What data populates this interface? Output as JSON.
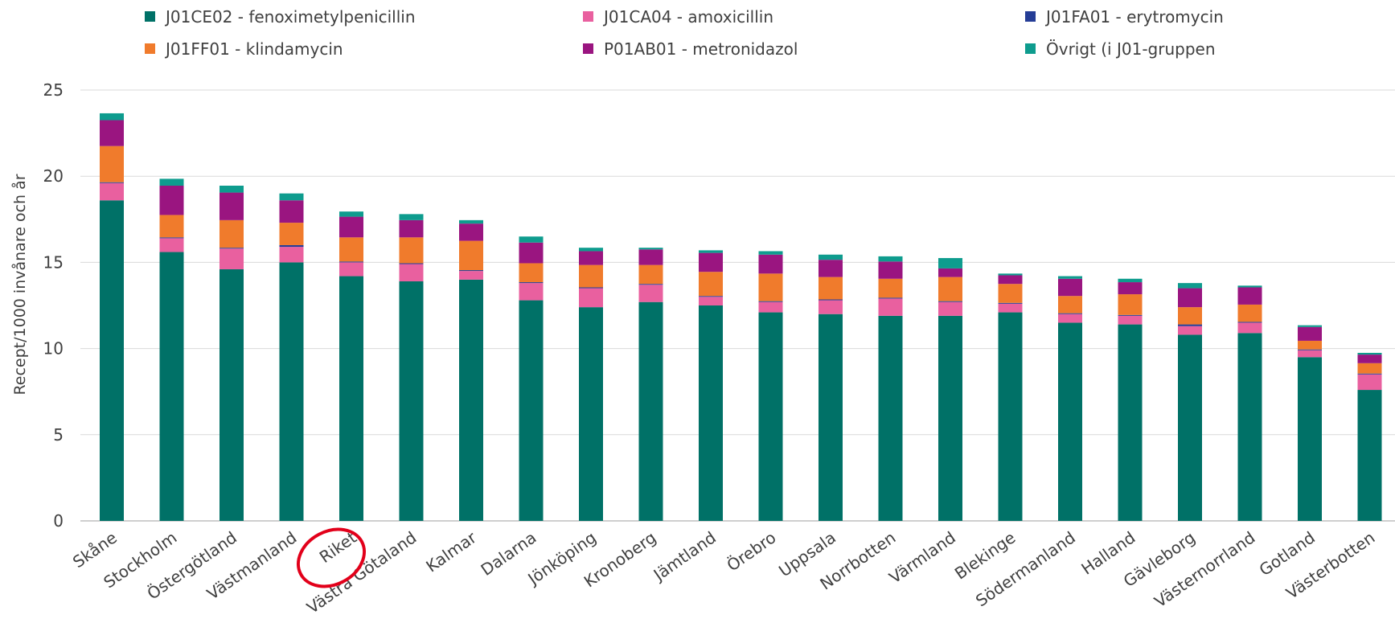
{
  "chart_data": {
    "type": "bar",
    "stacked": true,
    "title": "",
    "xlabel": "",
    "ylabel": "Recept/1000 invånare och år",
    "ylim": [
      0,
      25
    ],
    "yticks": [
      0,
      5,
      10,
      15,
      20,
      25
    ],
    "grid": true,
    "legend_position": "top",
    "highlighted_category": "Riket",
    "categories": [
      "Skåne",
      "Stockholm",
      "Östergötland",
      "Västmanland",
      "Riket",
      "Västra Götaland",
      "Kalmar",
      "Dalarna",
      "Jönköping",
      "Kronoberg",
      "Jämtland",
      "Örebro",
      "Uppsala",
      "Norrbotten",
      "Värmland",
      "Blekinge",
      "Södermanland",
      "Halland",
      "Gävleborg",
      "Västernorrland",
      "Gotland",
      "Västerbotten"
    ],
    "series": [
      {
        "name": "J01CE02 - fenoximetylpenicillin",
        "color": "#007167",
        "values": [
          18.6,
          15.6,
          14.6,
          15.0,
          14.2,
          13.9,
          14.0,
          12.8,
          12.4,
          12.7,
          12.5,
          12.1,
          12.0,
          11.9,
          11.9,
          12.1,
          11.5,
          11.4,
          10.8,
          10.9,
          9.5,
          7.6
        ]
      },
      {
        "name": "J01CA04 - amoxicillin",
        "color": "#E9609F",
        "values": [
          1.0,
          0.8,
          1.2,
          0.9,
          0.8,
          1.0,
          0.5,
          1.0,
          1.1,
          1.0,
          0.5,
          0.6,
          0.8,
          1.0,
          0.8,
          0.5,
          0.5,
          0.5,
          0.5,
          0.6,
          0.4,
          0.9
        ]
      },
      {
        "name": "J01FA01 - erytromycin",
        "color": "#253D96",
        "values": [
          0.05,
          0.05,
          0.05,
          0.1,
          0.05,
          0.05,
          0.05,
          0.05,
          0.05,
          0.05,
          0.05,
          0.05,
          0.05,
          0.05,
          0.05,
          0.05,
          0.05,
          0.05,
          0.1,
          0.05,
          0.05,
          0.05
        ]
      },
      {
        "name": "J01FF01 - klindamycin",
        "color": "#F07B2C",
        "values": [
          2.1,
          1.3,
          1.6,
          1.3,
          1.4,
          1.5,
          1.7,
          1.1,
          1.3,
          1.1,
          1.4,
          1.6,
          1.3,
          1.1,
          1.4,
          1.1,
          1.0,
          1.2,
          1.0,
          1.0,
          0.5,
          0.6
        ]
      },
      {
        "name": "P01AB01 - metronidazol",
        "color": "#9A1580",
        "values": [
          1.5,
          1.7,
          1.6,
          1.3,
          1.2,
          1.0,
          1.0,
          1.2,
          0.8,
          0.9,
          1.1,
          1.1,
          1.0,
          1.0,
          0.5,
          0.5,
          1.0,
          0.7,
          1.1,
          1.0,
          0.8,
          0.5
        ]
      },
      {
        "name": "Övrigt (i J01-gruppen",
        "color": "#0E9C8E",
        "values": [
          0.4,
          0.4,
          0.4,
          0.4,
          0.3,
          0.35,
          0.2,
          0.35,
          0.2,
          0.1,
          0.15,
          0.2,
          0.3,
          0.3,
          0.6,
          0.1,
          0.15,
          0.2,
          0.3,
          0.1,
          0.1,
          0.1
        ]
      }
    ]
  }
}
